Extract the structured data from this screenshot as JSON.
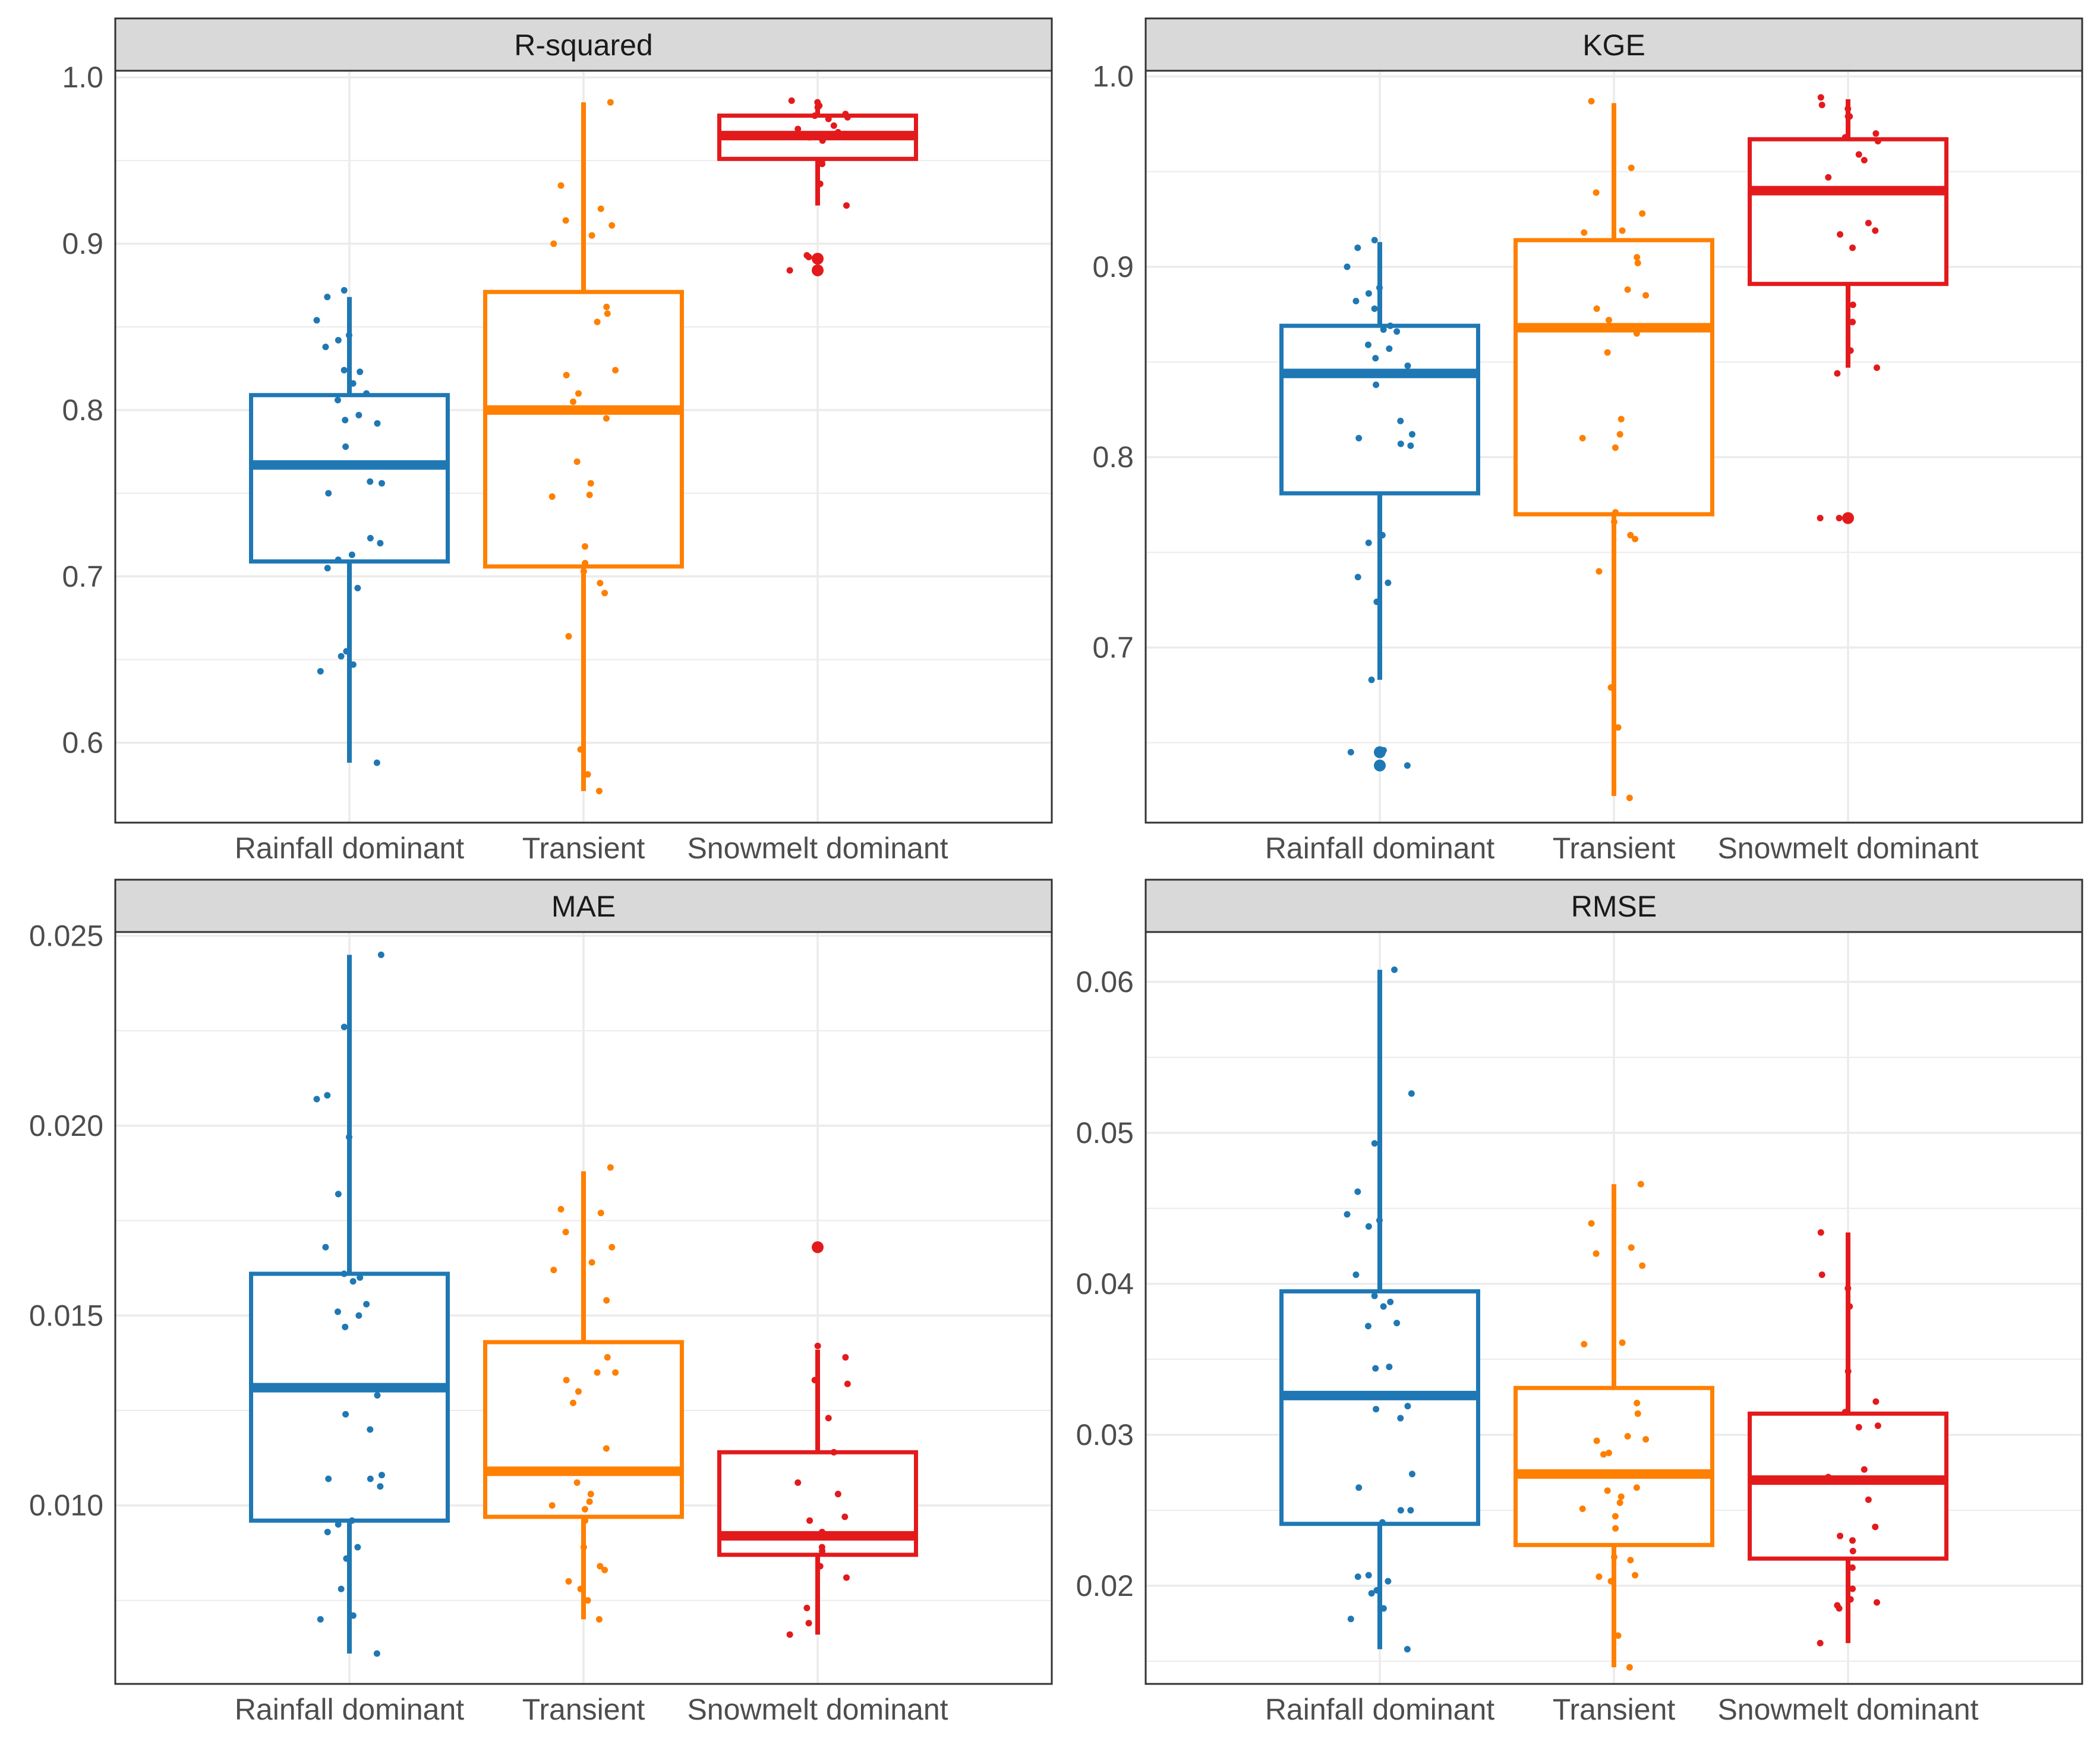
{
  "colors": {
    "Rainfall dominant": "#1f78b4",
    "Transient": "#ff7f00",
    "Snowmelt dominant": "#e31a1c",
    "strip_fill": "#d9d9d9",
    "grid": "#ebebeb",
    "frame": "#333333"
  },
  "chart_data": [
    {
      "type": "box",
      "title": "R-squared",
      "categories": [
        "Rainfall dominant",
        "Transient",
        "Snowmelt dominant"
      ],
      "ylim": [
        0.552,
        1.004
      ],
      "yticks": [
        0.6,
        0.7,
        0.8,
        0.9,
        1.0
      ],
      "ytick_labels": [
        "0.6",
        "0.7",
        "0.8",
        "0.9",
        "1.0"
      ],
      "boxes": [
        {
          "q1": 0.709,
          "median": 0.767,
          "q3": 0.809,
          "whisker_low": 0.588,
          "whisker_high": 0.868,
          "outliers": []
        },
        {
          "q1": 0.706,
          "median": 0.8,
          "q3": 0.871,
          "whisker_low": 0.571,
          "whisker_high": 0.985,
          "outliers": []
        },
        {
          "q1": 0.951,
          "median": 0.965,
          "q3": 0.977,
          "whisker_low": 0.923,
          "whisker_high": 0.986,
          "outliers": [
            0.891,
            0.884
          ]
        }
      ],
      "points": [
        [
          0.588,
          0.643,
          0.647,
          0.652,
          0.655,
          0.693,
          0.705,
          0.71,
          0.713,
          0.72,
          0.723,
          0.75,
          0.756,
          0.757,
          0.778,
          0.792,
          0.794,
          0.797,
          0.806,
          0.81,
          0.816,
          0.823,
          0.824,
          0.838,
          0.842,
          0.845,
          0.854,
          0.868,
          0.872
        ],
        [
          0.571,
          0.581,
          0.596,
          0.664,
          0.69,
          0.696,
          0.703,
          0.708,
          0.718,
          0.748,
          0.749,
          0.756,
          0.769,
          0.795,
          0.805,
          0.81,
          0.821,
          0.824,
          0.853,
          0.858,
          0.862,
          0.9,
          0.905,
          0.911,
          0.914,
          0.921,
          0.935,
          0.985
        ],
        [
          0.884,
          0.892,
          0.893,
          0.923,
          0.936,
          0.948,
          0.95,
          0.962,
          0.963,
          0.964,
          0.966,
          0.967,
          0.969,
          0.971,
          0.975,
          0.976,
          0.977,
          0.978,
          0.982,
          0.983,
          0.985,
          0.986
        ]
      ]
    },
    {
      "type": "box",
      "title": "KGE",
      "categories": [
        "Rainfall dominant",
        "Transient",
        "Snowmelt dominant"
      ],
      "ylim": [
        0.608,
        1.003
      ],
      "yticks": [
        0.7,
        0.8,
        0.9,
        1.0
      ],
      "ytick_labels": [
        "0.7",
        "0.8",
        "0.9",
        "1.0"
      ],
      "boxes": [
        {
          "q1": 0.781,
          "median": 0.844,
          "q3": 0.869,
          "whisker_low": 0.683,
          "whisker_high": 0.913,
          "outliers": [
            0.645,
            0.638
          ]
        },
        {
          "q1": 0.77,
          "median": 0.868,
          "q3": 0.914,
          "whisker_low": 0.622,
          "whisker_high": 0.986,
          "outliers": []
        },
        {
          "q1": 0.891,
          "median": 0.94,
          "q3": 0.967,
          "whisker_low": 0.847,
          "whisker_high": 0.988,
          "outliers": [
            0.768
          ]
        }
      ],
      "points": [
        [
          0.638,
          0.645,
          0.646,
          0.683,
          0.724,
          0.734,
          0.737,
          0.755,
          0.759,
          0.806,
          0.807,
          0.81,
          0.812,
          0.819,
          0.838,
          0.848,
          0.852,
          0.857,
          0.859,
          0.866,
          0.867,
          0.869,
          0.878,
          0.882,
          0.886,
          0.889,
          0.9,
          0.91,
          0.914
        ],
        [
          0.621,
          0.658,
          0.679,
          0.74,
          0.757,
          0.759,
          0.766,
          0.771,
          0.805,
          0.81,
          0.812,
          0.82,
          0.855,
          0.865,
          0.868,
          0.872,
          0.878,
          0.885,
          0.888,
          0.902,
          0.905,
          0.918,
          0.919,
          0.928,
          0.939,
          0.952,
          0.987
        ],
        [
          0.768,
          0.768,
          0.844,
          0.847,
          0.856,
          0.871,
          0.871,
          0.88,
          0.91,
          0.917,
          0.919,
          0.923,
          0.947,
          0.956,
          0.959,
          0.966,
          0.968,
          0.97,
          0.979,
          0.979,
          0.983,
          0.985,
          0.989
        ]
      ]
    },
    {
      "type": "box",
      "title": "MAE",
      "categories": [
        "Rainfall dominant",
        "Transient",
        "Snowmelt dominant"
      ],
      "ylim": [
        0.0053,
        0.0251
      ],
      "yticks": [
        0.01,
        0.015,
        0.02,
        0.025
      ],
      "ytick_labels": [
        "0.010",
        "0.015",
        "0.020",
        "0.025"
      ],
      "boxes": [
        {
          "q1": 0.0096,
          "median": 0.0131,
          "q3": 0.0161,
          "whisker_low": 0.0061,
          "whisker_high": 0.0245,
          "outliers": []
        },
        {
          "q1": 0.0097,
          "median": 0.0109,
          "q3": 0.0143,
          "whisker_low": 0.007,
          "whisker_high": 0.0188,
          "outliers": []
        },
        {
          "q1": 0.0087,
          "median": 0.0092,
          "q3": 0.0114,
          "whisker_low": 0.0066,
          "whisker_high": 0.0141,
          "outliers": [
            0.0168
          ]
        }
      ],
      "points": [
        [
          0.0061,
          0.007,
          0.0071,
          0.0078,
          0.0086,
          0.0089,
          0.0093,
          0.0095,
          0.0096,
          0.0105,
          0.0107,
          0.0107,
          0.0108,
          0.012,
          0.0124,
          0.0129,
          0.0147,
          0.015,
          0.0151,
          0.0153,
          0.0159,
          0.016,
          0.0161,
          0.0168,
          0.0182,
          0.0197,
          0.0207,
          0.0208,
          0.0226,
          0.0245
        ],
        [
          0.007,
          0.0075,
          0.0078,
          0.008,
          0.0083,
          0.0084,
          0.0089,
          0.0096,
          0.0099,
          0.01,
          0.0101,
          0.0103,
          0.0106,
          0.0115,
          0.0127,
          0.013,
          0.0133,
          0.0135,
          0.0135,
          0.0139,
          0.0154,
          0.0162,
          0.0164,
          0.0168,
          0.0172,
          0.0177,
          0.0178,
          0.0189
        ],
        [
          0.0066,
          0.0069,
          0.0073,
          0.0081,
          0.0084,
          0.0088,
          0.0089,
          0.0092,
          0.0093,
          0.0096,
          0.0097,
          0.0103,
          0.0106,
          0.0114,
          0.0123,
          0.0132,
          0.0133,
          0.0139,
          0.0142,
          0.0168,
          0.0168
        ]
      ]
    },
    {
      "type": "box",
      "title": "RMSE",
      "categories": [
        "Rainfall dominant",
        "Transient",
        "Snowmelt dominant"
      ],
      "ylim": [
        0.0135,
        0.0633
      ],
      "yticks": [
        0.02,
        0.03,
        0.04,
        0.05,
        0.06
      ],
      "ytick_labels": [
        "0.02",
        "0.03",
        "0.04",
        "0.05",
        "0.06"
      ],
      "boxes": [
        {
          "q1": 0.0241,
          "median": 0.0326,
          "q3": 0.0395,
          "whisker_low": 0.0158,
          "whisker_high": 0.0608,
          "outliers": []
        },
        {
          "q1": 0.0227,
          "median": 0.0274,
          "q3": 0.0331,
          "whisker_low": 0.0146,
          "whisker_high": 0.0466,
          "outliers": []
        },
        {
          "q1": 0.0218,
          "median": 0.027,
          "q3": 0.0314,
          "whisker_low": 0.0162,
          "whisker_high": 0.0434,
          "outliers": []
        }
      ],
      "points": [
        [
          0.0158,
          0.0178,
          0.0185,
          0.0195,
          0.0197,
          0.0203,
          0.0206,
          0.0207,
          0.0242,
          0.025,
          0.025,
          0.0265,
          0.0274,
          0.0311,
          0.0317,
          0.0319,
          0.0344,
          0.0345,
          0.0372,
          0.0374,
          0.0385,
          0.0388,
          0.0392,
          0.0406,
          0.0438,
          0.0442,
          0.0446,
          0.0461,
          0.0493,
          0.0526,
          0.0608
        ],
        [
          0.0146,
          0.0167,
          0.0203,
          0.0206,
          0.0207,
          0.0217,
          0.0219,
          0.0238,
          0.0246,
          0.0251,
          0.0255,
          0.0259,
          0.0263,
          0.0265,
          0.0287,
          0.0288,
          0.0296,
          0.0297,
          0.0299,
          0.0314,
          0.0321,
          0.036,
          0.0361,
          0.0412,
          0.042,
          0.0424,
          0.044,
          0.0466
        ],
        [
          0.0162,
          0.0185,
          0.0187,
          0.0189,
          0.0191,
          0.0198,
          0.0212,
          0.0223,
          0.023,
          0.0233,
          0.0239,
          0.0257,
          0.0272,
          0.0277,
          0.0305,
          0.0306,
          0.0315,
          0.0322,
          0.0342,
          0.0385,
          0.0397,
          0.0406,
          0.0434
        ]
      ]
    }
  ]
}
